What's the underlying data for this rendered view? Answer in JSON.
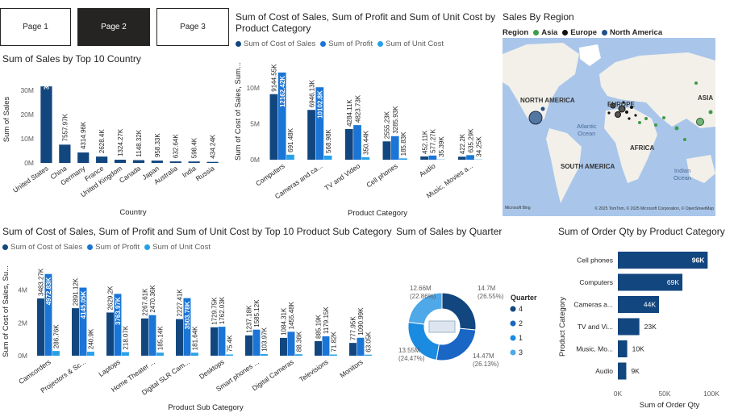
{
  "colors": {
    "dark": "#12467e",
    "mid": "#1a75d6",
    "light": "#27a0e8",
    "qlight": "#4fa8e8",
    "text": "#252423",
    "axis": "#605e5c"
  },
  "tabs": [
    {
      "label": "Page 1"
    },
    {
      "label": "Page 2",
      "active": true
    },
    {
      "label": "Page 3"
    }
  ],
  "chart_data": [
    {
      "id": "sales-by-country",
      "type": "bar",
      "title": "Sum of Sales by Top 10 Country",
      "xlabel": "Country",
      "ylabel": "Sum of Sales",
      "categories": [
        "United States",
        "China",
        "Germany",
        "France",
        "United Kingdom",
        "Canada",
        "Japan",
        "Australia",
        "India",
        "Russia"
      ],
      "values": [
        31635.24,
        7557.97,
        4314.96,
        2628.4,
        1324.27,
        1148.32,
        958.33,
        632.64,
        598.4,
        434.24
      ],
      "value_labels": [
        "31635.24K",
        "7557.97K",
        "4314.96K",
        "2628.4K",
        "1324.27K",
        "1148.32K",
        "958.33K",
        "632.64K",
        "598.4K",
        "434.24K"
      ],
      "unit": "thousands",
      "yticks": [
        "0M",
        "10M",
        "20M",
        "30M"
      ],
      "ylim": [
        0,
        36000
      ]
    },
    {
      "id": "by-product-category",
      "type": "bar",
      "title": "Sum of Cost of Sales, Sum of Profit and Sum of Unit Cost by Product Category",
      "xlabel": "Product Category",
      "ylabel": "Sum of Cost of Sales, Sum...",
      "categories": [
        "Computers",
        "Cameras and ca...",
        "TV and Video",
        "Cell phones",
        "Audio",
        "Music, Movies a..."
      ],
      "series": [
        {
          "name": "Sum of Cost of Sales",
          "values": [
            9144.55,
            6946.13,
            4284.11,
            2555.23,
            452.11,
            422.2
          ],
          "labels": [
            "9144.55K",
            "6946.13K",
            "4284.11K",
            "2555.23K",
            "452.11K",
            "422.2K"
          ]
        },
        {
          "name": "Sum of Profit",
          "values": [
            12162.42,
            10102.8,
            4823.73,
            3285.93,
            577.27,
            635.29
          ],
          "labels": [
            "12162.42K",
            "10102.8K",
            "4823.73K",
            "3285.93K",
            "577.27K",
            "635.29K"
          ]
        },
        {
          "name": "Sum of Unit Cost",
          "values": [
            691.48,
            568.98,
            350.44,
            185.83,
            35.39,
            34.25
          ],
          "labels": [
            "691.48K",
            "568.98K",
            "350.44K",
            "185.83K",
            "35.39K",
            "34.25K"
          ]
        }
      ],
      "unit": "thousands",
      "yticks": [
        "0M",
        "5M",
        "10M"
      ],
      "ylim": [
        0,
        13500
      ]
    },
    {
      "id": "by-sub-category",
      "type": "bar",
      "title": "Sum of Cost of Sales, Sum of Profit and Sum of Unit Cost by Top 10 Product Sub Category",
      "xlabel": "Product Sub Category",
      "ylabel": "Sum of Cost of Sales, Su...",
      "categories": [
        "Camcorders",
        "Projectors & Sc...",
        "Laptops",
        "Home Theater ...",
        "Digital SLR Cam...",
        "Desktops",
        "Smart phones ...",
        "Digital Cameras",
        "Televisions",
        "Monitors"
      ],
      "series": [
        {
          "name": "Sum of Cost of Sales",
          "values": [
            3483.27,
            2891.12,
            2629.2,
            2267.61,
            2227.41,
            1729.75,
            1237.18,
            1084.31,
            885.19,
            777.95
          ],
          "labels": [
            "3483.27K",
            "2891.12K",
            "2629.2K",
            "2267.61K",
            "2227.41K",
            "1729.75K",
            "1237.18K",
            "1084.31K",
            "885.19K",
            "777.95K"
          ]
        },
        {
          "name": "Sum of Profit",
          "values": [
            4972.83,
            4145.05,
            3763.97,
            2470.36,
            3503.78,
            1762.03,
            1585.12,
            1455.48,
            1179.15,
            1090.99
          ],
          "labels": [
            "4972.83K",
            "4145.05K",
            "3763.97K",
            "2470.36K",
            "3503.78K",
            "1762.03K",
            "1585.12K",
            "1455.48K",
            "1179.15K",
            "1090.99K"
          ]
        },
        {
          "name": "Sum of Unit Cost",
          "values": [
            286.76,
            240.9,
            218.07,
            185.14,
            181.64,
            75.4,
            103.97,
            88.36,
            71.82,
            63.05
          ],
          "labels": [
            "286.76K",
            "240.9K",
            "218.07K",
            "185.14K",
            "181.64K",
            "75.4K",
            "103.97K",
            "88.36K",
            "71.82K",
            "63.05K"
          ]
        }
      ],
      "unit": "thousands",
      "yticks": [
        "0M",
        "2M",
        "4M"
      ],
      "ylim": [
        0,
        5400
      ]
    },
    {
      "id": "sales-by-quarter",
      "type": "pie",
      "title": "Sum of Sales by Quarter",
      "legend_title": "Quarter",
      "slices": [
        {
          "name": "4",
          "value": 14.7,
          "label": "14.7M",
          "pct": "(26.55%)",
          "color": "#12467e"
        },
        {
          "name": "2",
          "value": 14.47,
          "label": "14.47M",
          "pct": "(26.13%)",
          "color": "#1a66c4"
        },
        {
          "name": "1",
          "value": 13.55,
          "label": "13.55M",
          "pct": "(24.47%)",
          "color": "#1a8be0"
        },
        {
          "name": "3",
          "value": 12.66,
          "label": "12.66M",
          "pct": "(22.86%)",
          "color": "#4fa8e8"
        }
      ]
    },
    {
      "id": "order-qty",
      "type": "bar",
      "orientation": "horizontal",
      "title": "Sum of Order Qty by Product Category",
      "xlabel": "Sum of Order Qty",
      "ylabel": "Product Category",
      "categories": [
        "Cell phones",
        "Computers",
        "Cameras a...",
        "TV and Vi...",
        "Music, Mo...",
        "Audio"
      ],
      "values": [
        96,
        69,
        44,
        23,
        10,
        9
      ],
      "value_labels": [
        "96K",
        "69K",
        "44K",
        "23K",
        "10K",
        "9K"
      ],
      "unit": "thousands",
      "xticks": [
        "0K",
        "50K",
        "100K"
      ],
      "xlim": [
        0,
        100
      ]
    }
  ],
  "map": {
    "title": "Sales By Region",
    "legend_title": "Region",
    "legend": [
      {
        "name": "Asia",
        "color": "#3f9a4a"
      },
      {
        "name": "Europe",
        "color": "#111111"
      },
      {
        "name": "North America",
        "color": "#1f4f8a"
      }
    ],
    "labels": {
      "north_america": "NORTH AMERICA",
      "europe": "EUROPE",
      "asia": "ASIA",
      "africa": "AFRICA",
      "south_america": "SOUTH AMERICA",
      "atlantic": "Atlantic\nOcean",
      "indian": "Indian\nOcean"
    },
    "attribution": "© 2025 TomTom, © 2025 Microsoft Corporation, © OpenStreetMap",
    "brand": "Microsoft Bing"
  }
}
